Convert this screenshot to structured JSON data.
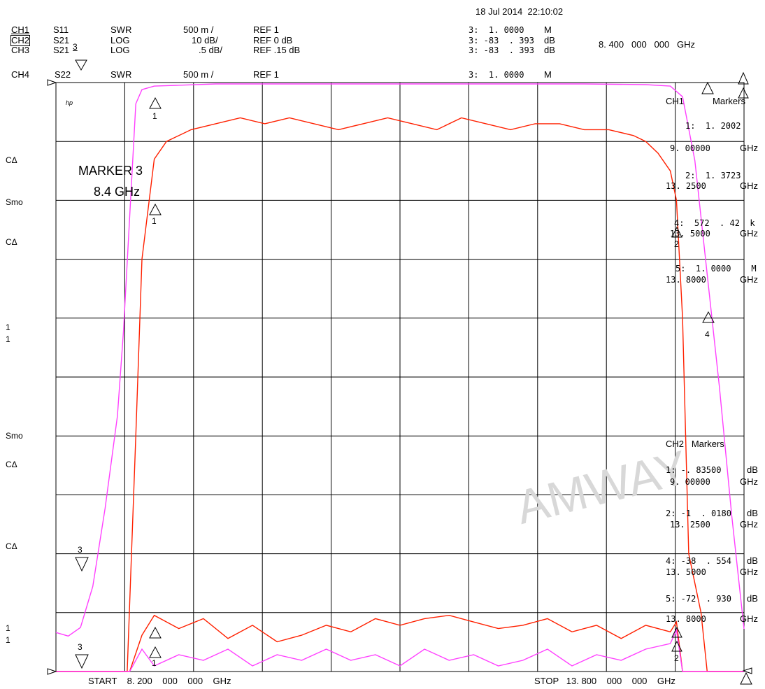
{
  "timestamp": "18 Jul 2014  22:10:02",
  "channels": [
    {
      "ch": "CH1",
      "param": "S11",
      "fmt": "SWR",
      "scale": "500 m /",
      "ref": "REF 1",
      "mval": "3:  1. 0000",
      "munit": "M"
    },
    {
      "ch": "CH2",
      "param": "S21",
      "fmt": "LOG",
      "scale": "10 dB/",
      "ref": "REF 0 dB",
      "mval": "3: -83  . 393",
      "munit": "dB"
    },
    {
      "ch": "CH3",
      "param": "S21",
      "fmt": "LOG",
      "scale": ".5 dB/",
      "ref": "REF .15 dB",
      "mval": "3: -83  . 393",
      "munit": "dB"
    },
    {
      "ch": "CH4",
      "param": "S22",
      "fmt": "SWR",
      "scale": "500 m /",
      "ref": "REF 1",
      "mval": "3:  1. 0000",
      "munit": "M"
    }
  ],
  "ch3_marker_tag": "3",
  "marker_freq_header": "8. 400   000   000   GHz",
  "left_labels": {
    "c1": "CΔ",
    "smo1": "Smo",
    "c2": "CΔ",
    "one_a": "1",
    "one_b": "1",
    "smo2": "Smo",
    "c3": "CΔ",
    "c4": "CΔ",
    "one_c": "1",
    "one_d": "1"
  },
  "hp_mark": "hp",
  "annotation": {
    "line1": "MARKER 3",
    "line2": "8.4 GHz"
  },
  "ch1_markers": {
    "title_ch": "CH1",
    "title": "Markers",
    "rows": [
      {
        "v": "1:  1. 2002",
        "f": "9. 00000",
        "fu": "GHz"
      },
      {
        "v": "2:  1. 3723",
        "f": "13. 2500",
        "fu": "GHz"
      },
      {
        "v": "4:  572  . 42  k",
        "f": "13. 5000",
        "fu": "GHz"
      },
      {
        "v": "5:  1. 0000    M",
        "f": "13. 8000",
        "fu": "GHz"
      }
    ]
  },
  "ch2_markers": {
    "title": "CH2   Markers",
    "rows": [
      {
        "v": "1: -. 83500",
        "u": "dB",
        "f": "9. 00000",
        "fu": "GHz"
      },
      {
        "v": "2: -1  . 0180",
        "u": "dB",
        "f": "13. 2500",
        "fu": "GHz"
      },
      {
        "v": "4: -38  . 554",
        "u": "dB",
        "f": "13. 5000",
        "fu": "GHz"
      },
      {
        "v": "5: -72  . 930",
        "u": "dB",
        "f": "13. 8000",
        "fu": "GHz"
      }
    ]
  },
  "start_label": "START    8. 200    000    000    GHz",
  "stop_label": "STOP   13. 800    000    000    GHz",
  "watermark": "AMWAY",
  "colors": {
    "s21": "#ff2000",
    "swr": "#ff40ff",
    "grid": "#000000"
  },
  "chart_data": {
    "type": "line",
    "x_range_ghz": [
      8.2,
      13.8
    ],
    "grid": "10 x 8 divisions",
    "series": [
      {
        "name": "CH2 S21 LOG",
        "x": [
          8.2,
          8.78,
          8.85,
          8.9,
          9.0,
          9.1,
          9.3,
          9.5,
          9.7,
          9.9,
          10.1,
          10.3,
          10.5,
          10.7,
          10.9,
          11.1,
          11.3,
          11.5,
          11.7,
          11.9,
          12.1,
          12.3,
          12.5,
          12.7,
          12.9,
          13.0,
          13.1,
          13.2,
          13.25,
          13.3,
          13.35,
          13.4,
          13.45,
          13.5,
          13.8
        ],
        "y": [
          -100,
          -100,
          -60,
          -30,
          -13,
          -10,
          -8,
          -7,
          -6,
          -7,
          -6,
          -7,
          -8,
          -7,
          -6,
          -7,
          -8,
          -6,
          -7,
          -8,
          -7,
          -7,
          -8,
          -8,
          -9,
          -10,
          -12,
          -15,
          -20,
          -40,
          -80,
          -85,
          -90,
          -100,
          -100
        ]
      },
      {
        "name": "CH4 S22 SWR",
        "x": [
          8.2,
          8.3,
          8.4,
          8.5,
          8.6,
          8.7,
          8.75,
          8.8,
          8.85,
          8.9,
          9.0,
          9.5,
          10.0,
          10.5,
          11.0,
          11.5,
          12.0,
          12.5,
          13.0,
          13.2,
          13.3,
          13.4,
          13.5,
          13.6,
          13.7,
          13.8
        ],
        "y": [
          1.55,
          1.5,
          1.62,
          2.2,
          3.3,
          4.6,
          5.8,
          7.4,
          9.0,
          9.2,
          9.25,
          9.28,
          9.28,
          9.28,
          9.28,
          9.28,
          9.28,
          9.28,
          9.27,
          9.25,
          9.1,
          8.2,
          6.6,
          5.0,
          3.2,
          1.6
        ]
      },
      {
        "name": "CH3 S21 LOG (fine)",
        "x": [
          8.2,
          8.8,
          8.9,
          9.0,
          9.2,
          9.4,
          9.6,
          9.8,
          10.0,
          10.2,
          10.4,
          10.6,
          10.8,
          11.0,
          11.2,
          11.4,
          11.6,
          11.8,
          12.0,
          12.2,
          12.4,
          12.6,
          12.8,
          13.0,
          13.2,
          13.25,
          13.3,
          13.4,
          13.8
        ],
        "y": [
          -1.0,
          -1.0,
          -0.45,
          -0.15,
          -0.35,
          -0.2,
          -0.5,
          -0.3,
          -0.55,
          -0.45,
          -0.3,
          -0.4,
          -0.2,
          -0.3,
          -0.2,
          -0.15,
          -0.25,
          -0.35,
          -0.3,
          -0.2,
          -0.4,
          -0.3,
          -0.5,
          -0.3,
          -0.4,
          -0.25,
          -1.0,
          -1.0,
          -1.0
        ]
      },
      {
        "name": "CH1 S11 SWR",
        "x": [
          8.2,
          8.8,
          8.9,
          9.0,
          9.2,
          9.4,
          9.6,
          9.8,
          10.0,
          10.2,
          10.4,
          10.6,
          10.8,
          11.0,
          11.2,
          11.4,
          11.6,
          11.8,
          12.0,
          12.2,
          12.4,
          12.6,
          12.8,
          13.0,
          13.2,
          13.25,
          13.3,
          13.8
        ],
        "y": [
          1.0,
          1.0,
          1.2,
          1.05,
          1.15,
          1.1,
          1.2,
          1.05,
          1.15,
          1.1,
          1.2,
          1.1,
          1.15,
          1.05,
          1.2,
          1.1,
          1.15,
          1.05,
          1.1,
          1.2,
          1.05,
          1.15,
          1.1,
          1.2,
          1.25,
          1.37,
          1.0,
          1.0
        ]
      }
    ]
  }
}
